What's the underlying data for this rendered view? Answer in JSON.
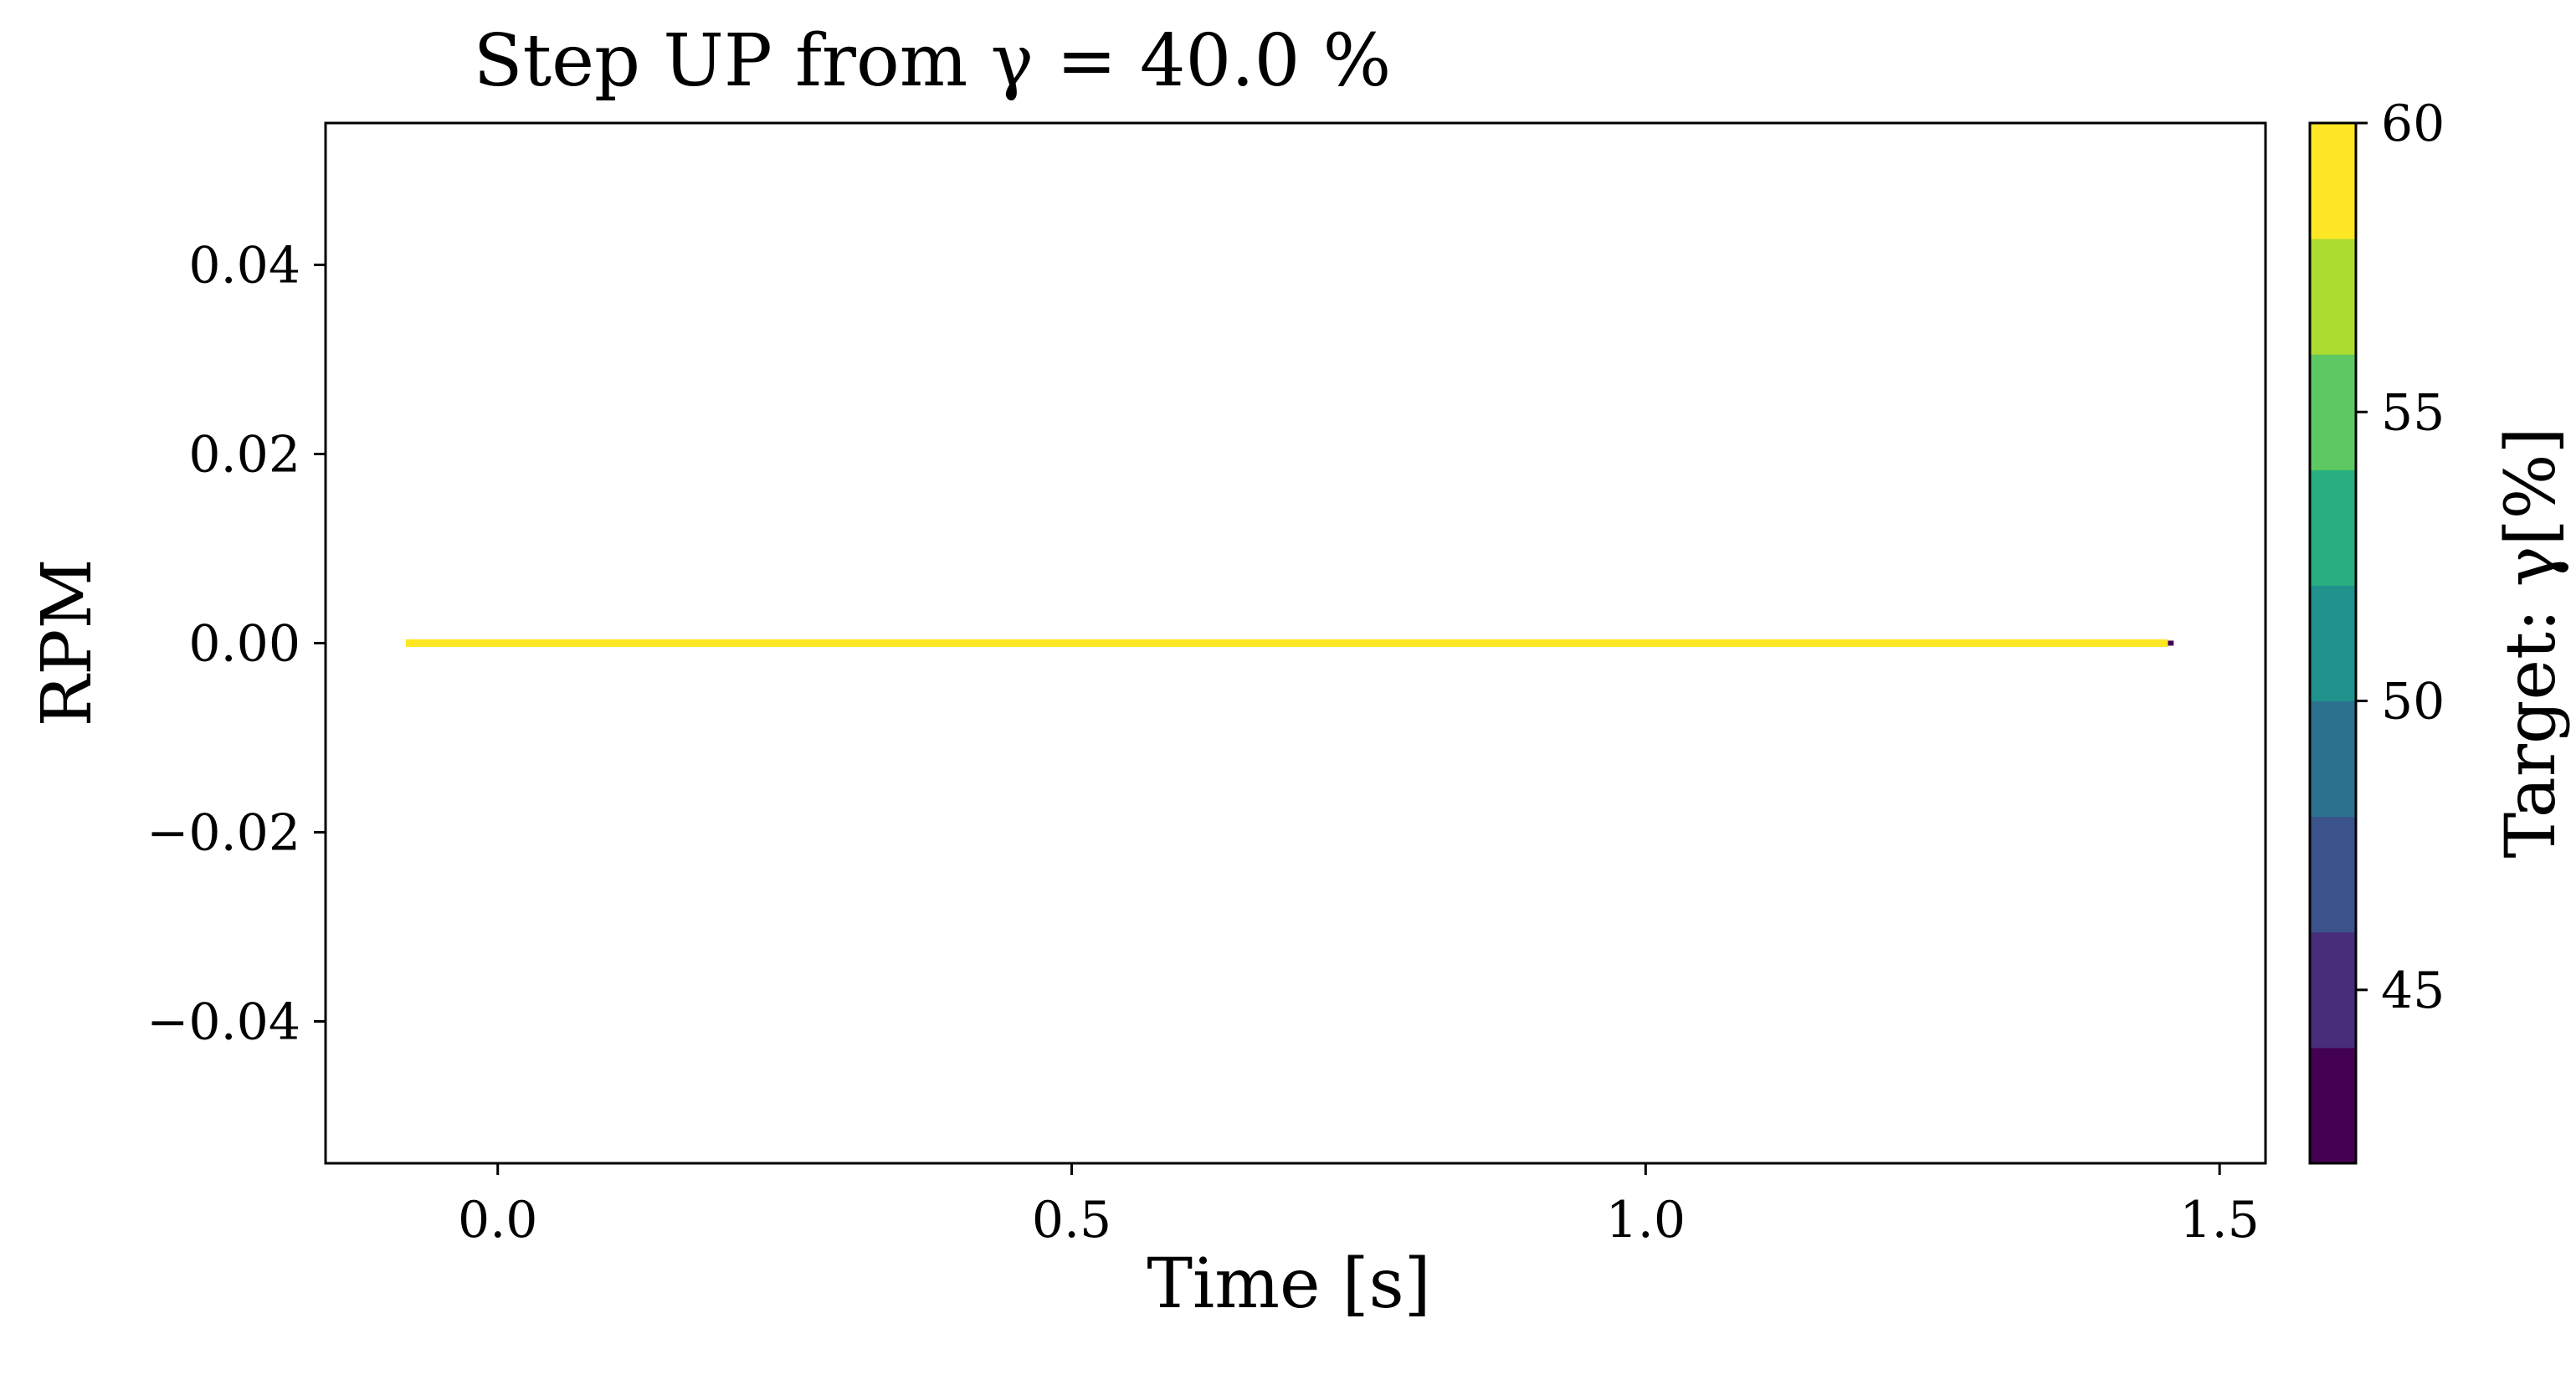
{
  "chart_data": {
    "type": "line",
    "title": "Step UP from γ = 40.0 %",
    "xlabel": "Time [s]",
    "ylabel": "RPM",
    "xlim": [
      -0.15,
      1.54
    ],
    "ylim": [
      -0.055,
      0.055
    ],
    "xticks": [
      0.0,
      0.5,
      1.0,
      1.5
    ],
    "xtick_labels": [
      "0.0",
      "0.5",
      "1.0",
      "1.5"
    ],
    "yticks": [
      0.04,
      0.02,
      0.0,
      -0.02,
      -0.04
    ],
    "ytick_labels": [
      "0.04",
      "0.02",
      "0.00",
      "−0.02",
      "−0.04"
    ],
    "grid": false,
    "series": [
      {
        "color": "#440154",
        "x": [
          -0.08,
          1.46
        ],
        "y": [
          0.0,
          0.0
        ]
      },
      {
        "color": "#fde725",
        "x": [
          -0.08,
          1.455
        ],
        "y": [
          0.0,
          0.0
        ]
      }
    ],
    "colorbar": {
      "label": "Target: γ[%]",
      "range": [
        42,
        60
      ],
      "ticks": [
        45,
        50,
        55,
        60
      ],
      "tick_labels": [
        "45",
        "50",
        "55",
        "60"
      ],
      "levels": [
        {
          "from": 42,
          "to": 44,
          "color": "#440154"
        },
        {
          "from": 44,
          "to": 46,
          "color": "#472d7b"
        },
        {
          "from": 46,
          "to": 48,
          "color": "#3b528b"
        },
        {
          "from": 48,
          "to": 50,
          "color": "#2c728e"
        },
        {
          "from": 50,
          "to": 52,
          "color": "#21918c"
        },
        {
          "from": 52,
          "to": 54,
          "color": "#28ae80"
        },
        {
          "from": 54,
          "to": 56,
          "color": "#5ec962"
        },
        {
          "from": 56,
          "to": 58,
          "color": "#addc30"
        },
        {
          "from": 58,
          "to": 60,
          "color": "#fde725"
        }
      ]
    }
  }
}
